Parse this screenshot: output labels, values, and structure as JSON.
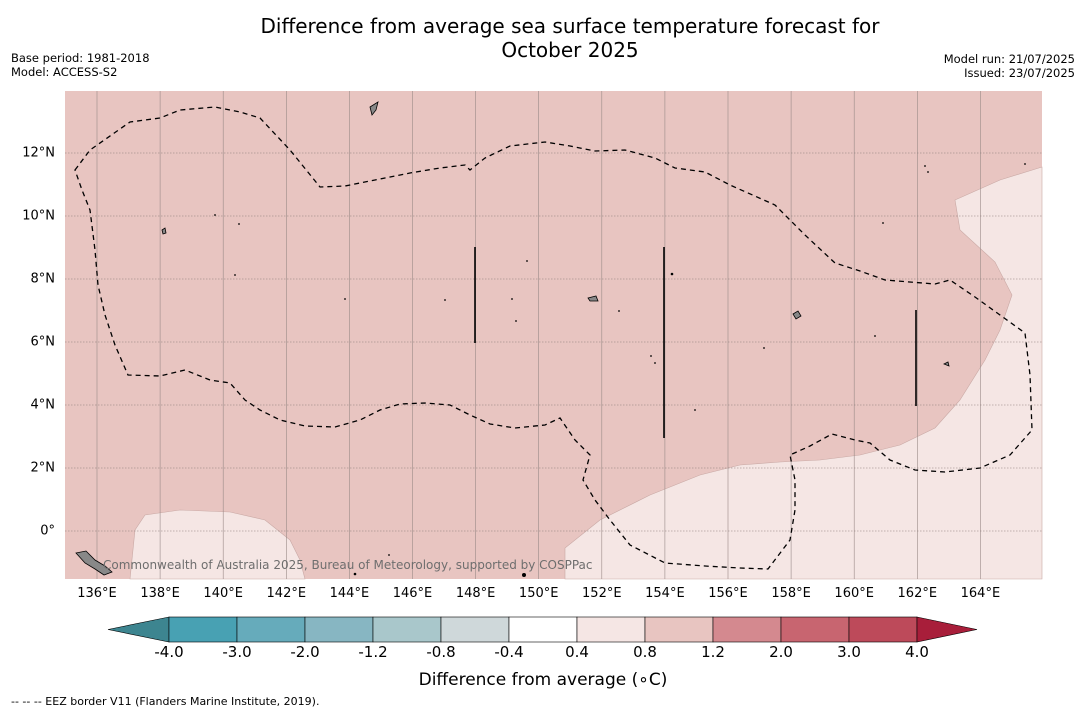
{
  "title": "Difference from average sea surface temperature forecast for",
  "subtitle": "October 2025",
  "base_period": "Base period: 1981-2018",
  "model": "Model: ACCESS-S2",
  "model_run": "Model run: 21/07/2025",
  "issued": "Issued: 23/07/2025",
  "copyright": "Commonwealth of Australia 2025, Bureau of Meteorology, supported by COSPPac",
  "footer_note": "--  --  -- EEZ border V11 (Flanders Marine Institute, 2019).",
  "colorbar": {
    "title": "Difference from average (∘C)",
    "ticks": [
      "-4.0",
      "-3.0",
      "-2.0",
      "-1.2",
      "-0.8",
      "-0.4",
      "0.4",
      "0.8",
      "1.2",
      "2.0",
      "3.0",
      "4.0"
    ],
    "colors": [
      "#48a1b3",
      "#66abbb",
      "#87b6c2",
      "#a9c7cb",
      "#cfd8da",
      "#ffffff",
      "#f5e6e4",
      "#e8c5c1",
      "#d4898f",
      "#c86570",
      "#bd4a5a"
    ],
    "under_color": "#3d8590",
    "over_color": "#a81e3a"
  },
  "map": {
    "x_ticks": [
      "136°E",
      "138°E",
      "140°E",
      "142°E",
      "144°E",
      "146°E",
      "148°E",
      "150°E",
      "152°E",
      "154°E",
      "156°E",
      "158°E",
      "160°E",
      "162°E",
      "164°E"
    ],
    "y_ticks": [
      "12°N",
      "10°N",
      "8°N",
      "6°N",
      "4°N",
      "2°N",
      "0°"
    ],
    "fill_main": "#e8c5c1",
    "fill_light": "#f5e6e4"
  }
}
